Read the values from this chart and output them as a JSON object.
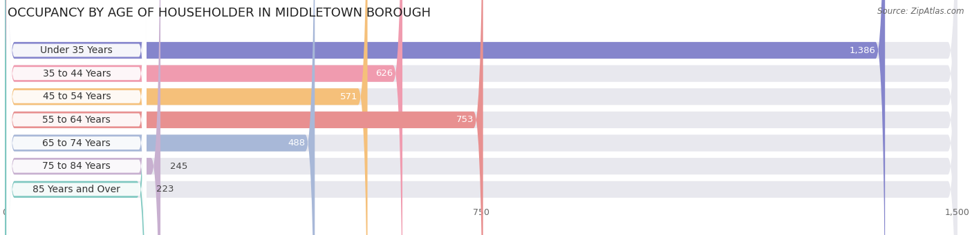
{
  "title": "OCCUPANCY BY AGE OF HOUSEHOLDER IN MIDDLETOWN BOROUGH",
  "source": "Source: ZipAtlas.com",
  "categories": [
    "Under 35 Years",
    "35 to 44 Years",
    "45 to 54 Years",
    "55 to 64 Years",
    "65 to 74 Years",
    "75 to 84 Years",
    "85 Years and Over"
  ],
  "values": [
    1386,
    626,
    571,
    753,
    488,
    245,
    223
  ],
  "bar_colors": [
    "#8585cc",
    "#f09baf",
    "#f5c07a",
    "#e89090",
    "#a8b8d8",
    "#c8b0d0",
    "#7ec8c0"
  ],
  "bar_bg_color": "#e8e8ee",
  "xlim": [
    0,
    1500
  ],
  "xticks": [
    0,
    750,
    1500
  ],
  "background_color": "#ffffff",
  "title_fontsize": 13,
  "label_fontsize": 10,
  "value_fontsize": 9.5
}
